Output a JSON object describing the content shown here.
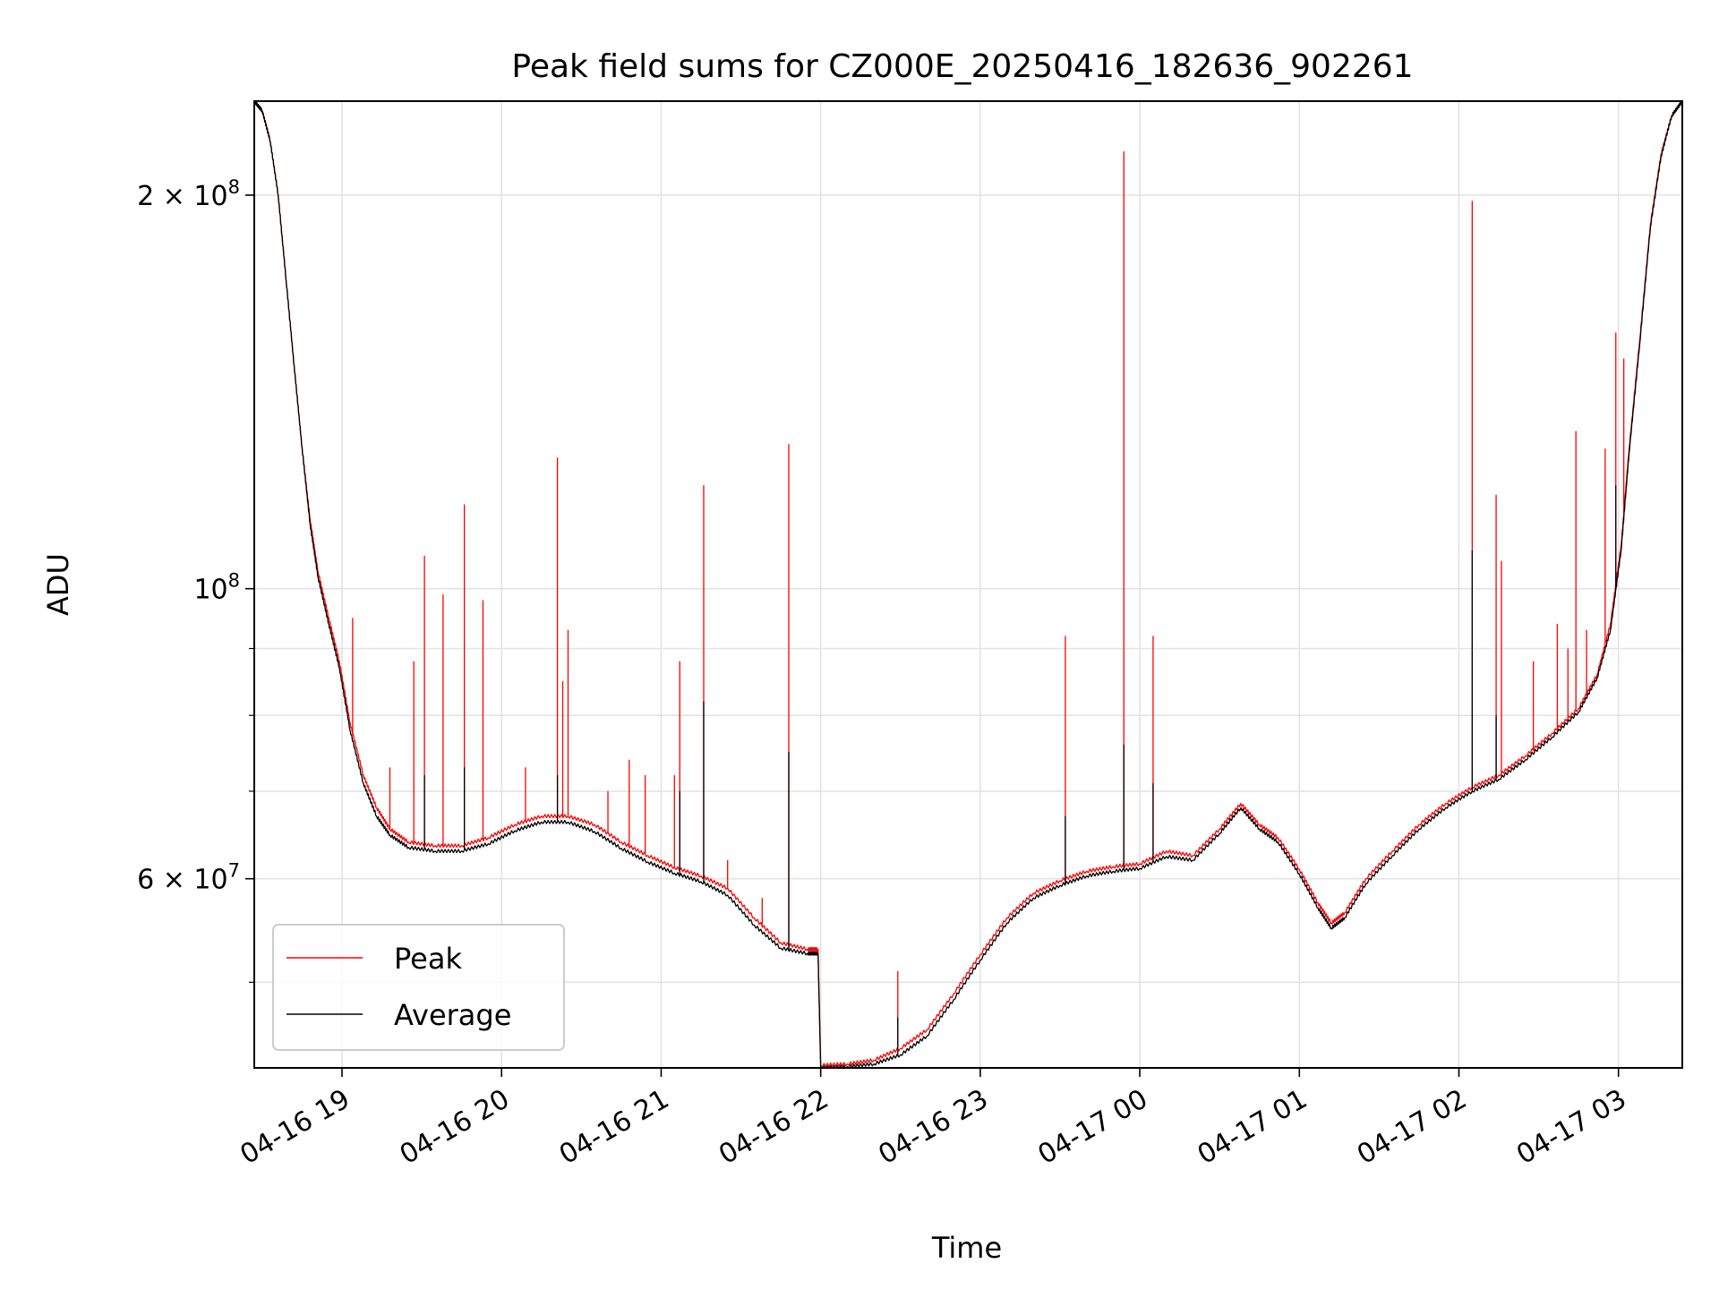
{
  "chart_data": {
    "type": "line",
    "title": "Peak field sums for CZ000E_20250416_182636_902261",
    "xlabel": "Time",
    "ylabel": "ADU",
    "yscale": "log",
    "ylim": [
      43000000,
      236000000
    ],
    "xlim": [
      "04-16 18:27",
      "04-17 03:24"
    ],
    "grid": true,
    "legend_position": "lower-left",
    "x_ticks": [
      {
        "t": "04-16 19:00",
        "label": "04-16 19"
      },
      {
        "t": "04-16 20:00",
        "label": "04-16 20"
      },
      {
        "t": "04-16 21:00",
        "label": "04-16 21"
      },
      {
        "t": "04-16 22:00",
        "label": "04-16 22"
      },
      {
        "t": "04-16 23:00",
        "label": "04-16 23"
      },
      {
        "t": "04-17 00:00",
        "label": "04-17 00"
      },
      {
        "t": "04-17 01:00",
        "label": "04-17 01"
      },
      {
        "t": "04-17 02:00",
        "label": "04-17 02"
      },
      {
        "t": "04-17 03:00",
        "label": "04-17 03"
      }
    ],
    "y_major_ticks": [
      {
        "value": 60000000,
        "mantissa": "6",
        "exp": "7"
      },
      {
        "value": 100000000,
        "mantissa": "",
        "exp": "8"
      },
      {
        "value": 200000000,
        "mantissa": "2",
        "exp": "8"
      }
    ],
    "y_minor_ticks": [
      50000000,
      70000000,
      80000000,
      90000000
    ],
    "series": [
      {
        "name": "Peak",
        "color": "#ff0000",
        "points": [
          [
            "04-16 18:27",
            236000000
          ],
          [
            "04-16 18:30",
            232000000
          ],
          [
            "04-16 18:33",
            220000000
          ],
          [
            "04-16 18:36",
            200000000
          ],
          [
            "04-16 18:39",
            172000000
          ],
          [
            "04-16 18:42",
            148000000
          ],
          [
            "04-16 18:45",
            128000000
          ],
          [
            "04-16 18:48",
            113000000
          ],
          [
            "04-16 18:51",
            103000000
          ],
          [
            "04-16 18:55",
            95000000
          ],
          [
            "04-16 18:59",
            88000000
          ],
          [
            "04-16 19:03",
            79000000
          ],
          [
            "04-16 19:08",
            72000000
          ],
          [
            "04-16 19:13",
            68000000
          ],
          [
            "04-16 19:18",
            65500000
          ],
          [
            "04-16 19:25",
            64000000
          ],
          [
            "04-16 19:35",
            63600000
          ],
          [
            "04-16 19:45",
            63600000
          ],
          [
            "04-16 19:55",
            64500000
          ],
          [
            "04-16 20:05",
            66000000
          ],
          [
            "04-16 20:15",
            67000000
          ],
          [
            "04-16 20:25",
            67000000
          ],
          [
            "04-16 20:35",
            66000000
          ],
          [
            "04-16 20:45",
            64000000
          ],
          [
            "04-16 20:55",
            62500000
          ],
          [
            "04-16 21:05",
            61200000
          ],
          [
            "04-16 21:15",
            60300000
          ],
          [
            "04-16 21:25",
            59000000
          ],
          [
            "04-16 21:35",
            56000000
          ],
          [
            "04-16 21:45",
            53600000
          ],
          [
            "04-16 21:55",
            53000000
          ],
          [
            "04-16 21:59",
            53000000
          ],
          [
            "04-16 22:00",
            43200000
          ],
          [
            "04-16 22:10",
            43300000
          ],
          [
            "04-16 22:20",
            43600000
          ],
          [
            "04-16 22:30",
            44500000
          ],
          [
            "04-16 22:40",
            46000000
          ],
          [
            "04-16 22:50",
            49000000
          ],
          [
            "04-16 23:00",
            52500000
          ],
          [
            "04-16 23:10",
            56000000
          ],
          [
            "04-16 23:20",
            58500000
          ],
          [
            "04-16 23:30",
            59800000
          ],
          [
            "04-16 23:40",
            60800000
          ],
          [
            "04-16 23:50",
            61300000
          ],
          [
            "04-17 00:00",
            61600000
          ],
          [
            "04-17 00:10",
            63000000
          ],
          [
            "04-17 00:20",
            62500000
          ],
          [
            "04-17 00:30",
            65500000
          ],
          [
            "04-17 00:38",
            68500000
          ],
          [
            "04-17 00:45",
            66000000
          ],
          [
            "04-17 00:52",
            64500000
          ],
          [
            "04-17 01:00",
            61000000
          ],
          [
            "04-17 01:07",
            57500000
          ],
          [
            "04-17 01:12",
            55500000
          ],
          [
            "04-17 01:17",
            56500000
          ],
          [
            "04-17 01:25",
            60000000
          ],
          [
            "04-17 01:35",
            63000000
          ],
          [
            "04-17 01:45",
            66000000
          ],
          [
            "04-17 01:55",
            68500000
          ],
          [
            "04-17 02:05",
            70500000
          ],
          [
            "04-17 02:15",
            72000000
          ],
          [
            "04-17 02:25",
            74500000
          ],
          [
            "04-17 02:35",
            77500000
          ],
          [
            "04-17 02:45",
            81000000
          ],
          [
            "04-17 02:52",
            86000000
          ],
          [
            "04-17 02:57",
            94000000
          ],
          [
            "04-17 03:01",
            108000000
          ],
          [
            "04-17 03:04",
            128000000
          ],
          [
            "04-17 03:08",
            155000000
          ],
          [
            "04-17 03:12",
            190000000
          ],
          [
            "04-17 03:16",
            215000000
          ],
          [
            "04-17 03:20",
            230000000
          ],
          [
            "04-17 03:24",
            236000000
          ]
        ],
        "spikes": [
          [
            "04-16 19:04",
            95000000
          ],
          [
            "04-16 19:18",
            73000000
          ],
          [
            "04-16 19:27",
            88000000
          ],
          [
            "04-16 19:31",
            106000000
          ],
          [
            "04-16 19:38",
            99000000
          ],
          [
            "04-16 19:46",
            116000000
          ],
          [
            "04-16 19:53",
            98000000
          ],
          [
            "04-16 20:09",
            73000000
          ],
          [
            "04-16 20:21",
            126000000
          ],
          [
            "04-16 20:23",
            85000000
          ],
          [
            "04-16 20:25",
            93000000
          ],
          [
            "04-16 20:40",
            70000000
          ],
          [
            "04-16 20:48",
            74000000
          ],
          [
            "04-16 20:54",
            72000000
          ],
          [
            "04-16 21:05",
            72000000
          ],
          [
            "04-16 21:07",
            88000000
          ],
          [
            "04-16 21:16",
            120000000
          ],
          [
            "04-16 21:25",
            62000000
          ],
          [
            "04-16 21:38",
            58000000
          ],
          [
            "04-16 21:48",
            129000000
          ],
          [
            "04-16 22:29",
            51000000
          ],
          [
            "04-16 23:32",
            92000000
          ],
          [
            "04-16 23:54",
            216000000
          ],
          [
            "04-17 00:05",
            92000000
          ],
          [
            "04-17 02:05",
            198000000
          ],
          [
            "04-17 02:14",
            118000000
          ],
          [
            "04-17 02:16",
            105000000
          ],
          [
            "04-17 02:28",
            88000000
          ],
          [
            "04-17 02:37",
            94000000
          ],
          [
            "04-17 02:41",
            90000000
          ],
          [
            "04-17 02:44",
            132000000
          ],
          [
            "04-17 02:48",
            93000000
          ],
          [
            "04-17 02:55",
            128000000
          ],
          [
            "04-17 02:59",
            157000000
          ],
          [
            "04-17 03:02",
            150000000
          ]
        ]
      },
      {
        "name": "Average",
        "color": "#000000",
        "points": [
          [
            "04-16 18:27",
            236000000
          ],
          [
            "04-16 18:30",
            232000000
          ],
          [
            "04-16 18:33",
            220000000
          ],
          [
            "04-16 18:36",
            200000000
          ],
          [
            "04-16 18:39",
            172000000
          ],
          [
            "04-16 18:42",
            148000000
          ],
          [
            "04-16 18:45",
            128000000
          ],
          [
            "04-16 18:48",
            112000000
          ],
          [
            "04-16 18:51",
            102000000
          ],
          [
            "04-16 18:55",
            94000000
          ],
          [
            "04-16 18:59",
            87000000
          ],
          [
            "04-16 19:03",
            78000000
          ],
          [
            "04-16 19:08",
            71000000
          ],
          [
            "04-16 19:13",
            67000000
          ],
          [
            "04-16 19:18",
            64800000
          ],
          [
            "04-16 19:25",
            63400000
          ],
          [
            "04-16 19:35",
            63000000
          ],
          [
            "04-16 19:45",
            63000000
          ],
          [
            "04-16 19:55",
            63800000
          ],
          [
            "04-16 20:05",
            65300000
          ],
          [
            "04-16 20:15",
            66300000
          ],
          [
            "04-16 20:25",
            66300000
          ],
          [
            "04-16 20:35",
            65200000
          ],
          [
            "04-16 20:45",
            63300000
          ],
          [
            "04-16 20:55",
            61800000
          ],
          [
            "04-16 21:05",
            60600000
          ],
          [
            "04-16 21:15",
            59700000
          ],
          [
            "04-16 21:25",
            58300000
          ],
          [
            "04-16 21:35",
            55300000
          ],
          [
            "04-16 21:45",
            53100000
          ],
          [
            "04-16 21:55",
            52600000
          ],
          [
            "04-16 21:59",
            52600000
          ],
          [
            "04-16 22:00",
            43000000
          ],
          [
            "04-16 22:10",
            43100000
          ],
          [
            "04-16 22:20",
            43300000
          ],
          [
            "04-16 22:30",
            44000000
          ],
          [
            "04-16 22:40",
            45500000
          ],
          [
            "04-16 22:50",
            48500000
          ],
          [
            "04-16 23:00",
            52000000
          ],
          [
            "04-16 23:10",
            55500000
          ],
          [
            "04-16 23:20",
            58000000
          ],
          [
            "04-16 23:30",
            59300000
          ],
          [
            "04-16 23:40",
            60300000
          ],
          [
            "04-16 23:50",
            60800000
          ],
          [
            "04-17 00:00",
            61100000
          ],
          [
            "04-17 00:10",
            62400000
          ],
          [
            "04-17 00:20",
            62000000
          ],
          [
            "04-17 00:30",
            65000000
          ],
          [
            "04-17 00:38",
            68000000
          ],
          [
            "04-17 00:45",
            65500000
          ],
          [
            "04-17 00:52",
            64000000
          ],
          [
            "04-17 01:00",
            60500000
          ],
          [
            "04-17 01:07",
            57000000
          ],
          [
            "04-17 01:12",
            55000000
          ],
          [
            "04-17 01:17",
            56000000
          ],
          [
            "04-17 01:25",
            59500000
          ],
          [
            "04-17 01:35",
            62500000
          ],
          [
            "04-17 01:45",
            65500000
          ],
          [
            "04-17 01:55",
            68000000
          ],
          [
            "04-17 02:05",
            70000000
          ],
          [
            "04-17 02:15",
            71500000
          ],
          [
            "04-17 02:25",
            74000000
          ],
          [
            "04-17 02:35",
            77000000
          ],
          [
            "04-17 02:45",
            80500000
          ],
          [
            "04-17 02:52",
            85500000
          ],
          [
            "04-17 02:57",
            93000000
          ],
          [
            "04-17 03:01",
            107000000
          ],
          [
            "04-17 03:04",
            127000000
          ],
          [
            "04-17 03:08",
            154000000
          ],
          [
            "04-17 03:12",
            189000000
          ],
          [
            "04-17 03:16",
            214000000
          ],
          [
            "04-17 03:20",
            230000000
          ],
          [
            "04-17 03:24",
            236000000
          ]
        ],
        "spikes": [
          [
            "04-16 19:31",
            72000000
          ],
          [
            "04-16 19:46",
            73000000
          ],
          [
            "04-16 20:21",
            72000000
          ],
          [
            "04-16 21:07",
            70000000
          ],
          [
            "04-16 21:16",
            82000000
          ],
          [
            "04-16 21:48",
            75000000
          ],
          [
            "04-16 22:29",
            47000000
          ],
          [
            "04-16 23:32",
            67000000
          ],
          [
            "04-16 23:54",
            76000000
          ],
          [
            "04-17 00:05",
            71000000
          ],
          [
            "04-17 02:05",
            107000000
          ],
          [
            "04-17 02:14",
            80000000
          ],
          [
            "04-17 02:59",
            120000000
          ]
        ]
      }
    ]
  }
}
